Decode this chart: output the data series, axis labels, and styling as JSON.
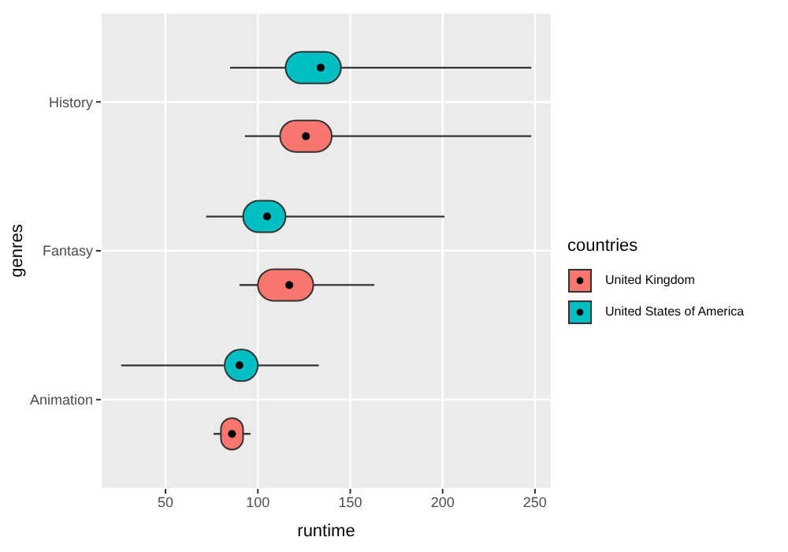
{
  "chart_data": {
    "type": "box",
    "orientation": "horizontal",
    "xlabel": "runtime",
    "ylabel": "genres",
    "legend_title": "countries",
    "legend": "right",
    "grid": true,
    "categories": [
      "History",
      "Fantasy",
      "Animation"
    ],
    "xlim": [
      15,
      259
    ],
    "xticks": [
      50,
      100,
      150,
      200,
      250
    ],
    "series": [
      {
        "name": "United Kingdom",
        "color": "#f8766d",
        "boxes": [
          {
            "low": 93,
            "q1": 112,
            "median": 126,
            "q3": 140,
            "high": 248
          },
          {
            "low": 90,
            "q1": 100,
            "median": 117,
            "q3": 130,
            "high": 163
          },
          {
            "low": 76,
            "q1": 80,
            "median": 86,
            "q3": 92,
            "high": 96
          }
        ]
      },
      {
        "name": "United States of America",
        "color": "#00bfc4",
        "boxes": [
          {
            "low": 85,
            "q1": 115,
            "median": 134,
            "q3": 145,
            "high": 248
          },
          {
            "low": 72,
            "q1": 92,
            "median": 105,
            "q3": 115,
            "high": 201
          },
          {
            "low": 26,
            "q1": 82,
            "median": 90,
            "q3": 100,
            "high": 133
          }
        ]
      }
    ]
  }
}
